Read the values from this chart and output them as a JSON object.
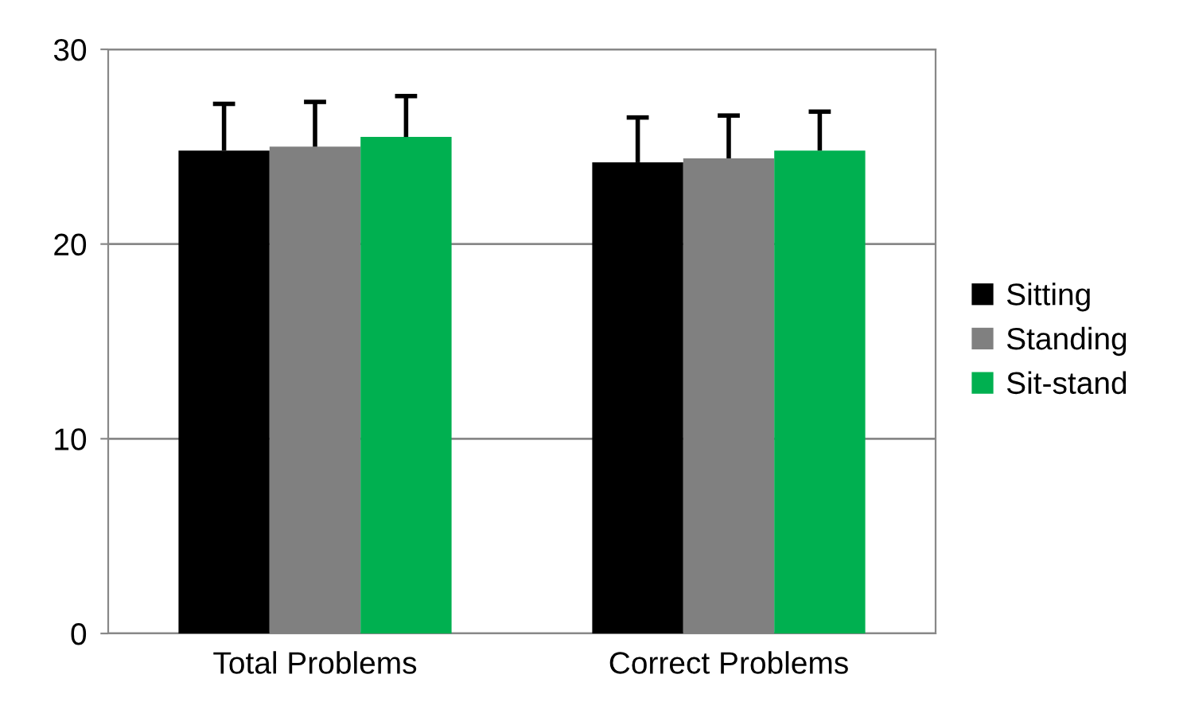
{
  "chart_data": {
    "type": "bar",
    "categories": [
      "Total Problems",
      "Correct Problems"
    ],
    "series": [
      {
        "name": "Sitting",
        "color": "#000000",
        "values": [
          24.8,
          24.2
        ],
        "errors": [
          [
            24.8,
            27.2
          ],
          [
            24.2,
            26.5
          ]
        ]
      },
      {
        "name": "Standing",
        "color": "#808080",
        "values": [
          25.0,
          24.4
        ],
        "errors": [
          [
            25.0,
            27.3
          ],
          [
            24.4,
            26.6
          ]
        ]
      },
      {
        "name": "Sit-stand",
        "color": "#00b050",
        "values": [
          25.5,
          24.8
        ],
        "errors": [
          [
            25.5,
            27.6
          ],
          [
            24.8,
            26.8
          ]
        ]
      }
    ],
    "ylim": [
      0,
      30
    ],
    "yticks": [
      0,
      10,
      20,
      30
    ],
    "grid": "y",
    "legend": "right"
  }
}
